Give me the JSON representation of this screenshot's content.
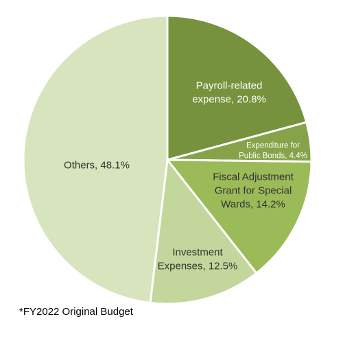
{
  "chart_data": {
    "type": "pie",
    "title": "",
    "slices": [
      {
        "label_lines": [
          "Payroll-related",
          "expense, 20.8%"
        ],
        "value": 20.8,
        "color": "#76923c",
        "text_color": "#ffffff"
      },
      {
        "label_lines": [
          "Expenditure for",
          "Public Bonds, 4.4%"
        ],
        "value": 4.4,
        "color": "#86a34a",
        "text_color": "#ffffff"
      },
      {
        "label_lines": [
          "Fiscal Adjustment",
          "Grant for Special",
          "Wards, 14.2%"
        ],
        "value": 14.2,
        "color": "#9bbb59",
        "text_color": "#333333"
      },
      {
        "label_lines": [
          "Investment",
          "Expenses, 12.5%"
        ],
        "value": 12.5,
        "color": "#c3d69b",
        "text_color": "#333333"
      },
      {
        "label_lines": [
          "Others, 48.1%"
        ],
        "value": 48.1,
        "color": "#d7e4bd",
        "text_color": "#333333"
      }
    ],
    "start_angle_deg": 0,
    "direction": "clockwise",
    "edge_color": "#ffffff"
  },
  "footnote": "*FY2022 Original Budget"
}
